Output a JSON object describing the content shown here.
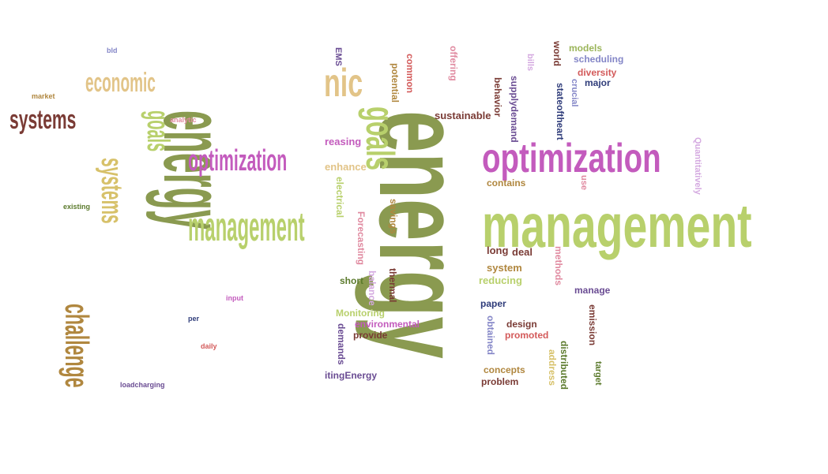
{
  "left_cloud": {
    "energy": "energy",
    "challenge": "challenge",
    "systems": "systems",
    "optimization": "optimization",
    "management": "management",
    "economic": "economic",
    "goals": "goals",
    "systems_rot": "systems"
  },
  "right_cloud": {
    "energy": "energy",
    "management": "management",
    "optimization": "optimization",
    "goals": "goals",
    "nic": "nic",
    "sustainable": "sustainable",
    "reasing": "reasing",
    "enhance": "enhance",
    "contains": "contains",
    "long": "long",
    "deal": "deal",
    "system": "system",
    "reducing": "reducing",
    "short": "short",
    "manage": "manage",
    "paper": "paper",
    "design": "design",
    "promoted": "promoted",
    "environmental": "environmental",
    "provide": "provide",
    "monitoring": "Monitoring",
    "itingenergy": "itingEnergy",
    "concepts": "concepts",
    "problem": "problem",
    "models": "models",
    "scheduling": "scheduling",
    "diversity": "diversity",
    "major": "major",
    "ems": "EMS",
    "potential": "potential",
    "common": "common",
    "offering": "offering",
    "bills": "bills",
    "world": "world",
    "behavior": "behavior",
    "supplydemand": "supplydemand",
    "stateoftheart": "stateoftheart",
    "crucial": "crucial",
    "quantitatively": "Quantitatively",
    "use": "use",
    "electrical": "electrical",
    "savings": "savings",
    "forecasting": "Forecasting",
    "methods": "methods",
    "thermal": "thermal",
    "balance": "balance",
    "demands": "demands",
    "obtained": "obtained",
    "address": "address",
    "distributed": "distributed",
    "target": "target",
    "emission": "emission"
  }
}
